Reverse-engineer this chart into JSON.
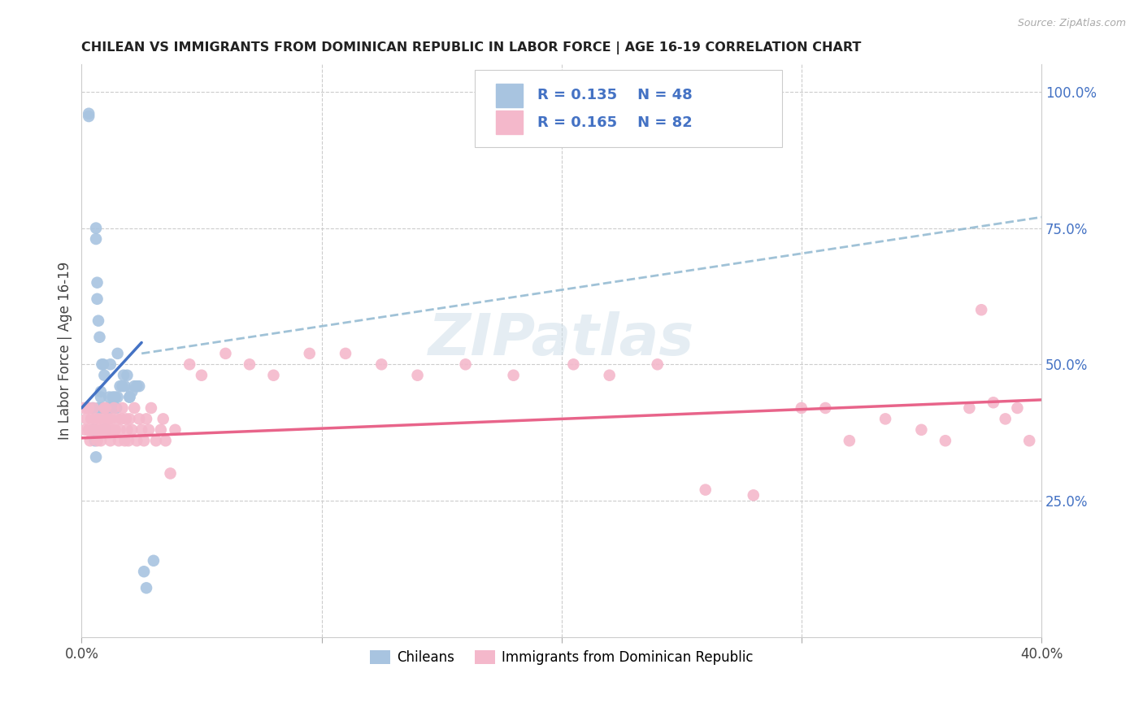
{
  "title": "CHILEAN VS IMMIGRANTS FROM DOMINICAN REPUBLIC IN LABOR FORCE | AGE 16-19 CORRELATION CHART",
  "source": "Source: ZipAtlas.com",
  "ylabel": "In Labor Force | Age 16-19",
  "xlim": [
    0.0,
    0.4
  ],
  "ylim": [
    0.0,
    1.05
  ],
  "xtick_labels": [
    "0.0%",
    "",
    "",
    "",
    "40.0%"
  ],
  "xtick_positions": [
    0.0,
    0.1,
    0.2,
    0.3,
    0.4
  ],
  "ytick_positions_right": [
    0.25,
    0.5,
    0.75,
    1.0
  ],
  "ytick_labels_right": [
    "25.0%",
    "50.0%",
    "75.0%",
    "100.0%"
  ],
  "legend_line1": "R = 0.135    N = 48",
  "legend_line2": "R = 0.165    N = 82",
  "color_chilean": "#a8c4e0",
  "color_dominican": "#f4b8cb",
  "color_chilean_line": "#4472c4",
  "color_dominican_line": "#e8648a",
  "color_dashed_line": "#90b8d0",
  "color_blue_text": "#4472c4",
  "color_title": "#222222",
  "background_color": "#ffffff",
  "watermark": "ZIPatlas",
  "legend_bottom_labels": [
    "Chileans",
    "Immigrants from Dominican Republic"
  ],
  "grid_color": "#cccccc",
  "chilean_x": [
    0.003,
    0.003,
    0.0045,
    0.006,
    0.006,
    0.0065,
    0.0065,
    0.007,
    0.007,
    0.0075,
    0.008,
    0.008,
    0.0085,
    0.0085,
    0.009,
    0.009,
    0.0095,
    0.01,
    0.01,
    0.0105,
    0.011,
    0.0115,
    0.012,
    0.0125,
    0.013,
    0.014,
    0.0145,
    0.015,
    0.016,
    0.017,
    0.018,
    0.019,
    0.02,
    0.021,
    0.022,
    0.024,
    0.005,
    0.0055,
    0.006,
    0.009,
    0.012,
    0.015,
    0.0175,
    0.02,
    0.023,
    0.026,
    0.027,
    0.03
  ],
  "chilean_y": [
    0.955,
    0.96,
    0.42,
    0.75,
    0.73,
    0.65,
    0.62,
    0.58,
    0.42,
    0.55,
    0.45,
    0.44,
    0.5,
    0.42,
    0.5,
    0.42,
    0.48,
    0.42,
    0.38,
    0.42,
    0.42,
    0.44,
    0.42,
    0.42,
    0.44,
    0.44,
    0.42,
    0.44,
    0.46,
    0.46,
    0.46,
    0.48,
    0.44,
    0.45,
    0.46,
    0.46,
    0.38,
    0.36,
    0.33,
    0.38,
    0.5,
    0.52,
    0.48,
    0.44,
    0.46,
    0.12,
    0.09,
    0.14
  ],
  "dominican_x": [
    0.001,
    0.0015,
    0.002,
    0.0025,
    0.003,
    0.003,
    0.0035,
    0.004,
    0.0045,
    0.005,
    0.0055,
    0.006,
    0.0065,
    0.007,
    0.0075,
    0.008,
    0.0085,
    0.009,
    0.0095,
    0.01,
    0.01,
    0.0105,
    0.011,
    0.0115,
    0.012,
    0.0125,
    0.013,
    0.0135,
    0.014,
    0.015,
    0.0155,
    0.016,
    0.0165,
    0.017,
    0.018,
    0.0185,
    0.019,
    0.0195,
    0.02,
    0.021,
    0.022,
    0.023,
    0.024,
    0.025,
    0.026,
    0.027,
    0.028,
    0.029,
    0.031,
    0.033,
    0.034,
    0.035,
    0.037,
    0.039,
    0.045,
    0.05,
    0.06,
    0.07,
    0.08,
    0.095,
    0.11,
    0.125,
    0.14,
    0.16,
    0.18,
    0.205,
    0.22,
    0.24,
    0.26,
    0.28,
    0.3,
    0.31,
    0.32,
    0.335,
    0.35,
    0.36,
    0.37,
    0.375,
    0.38,
    0.385,
    0.39,
    0.395
  ],
  "dominican_y": [
    0.42,
    0.38,
    0.4,
    0.42,
    0.38,
    0.42,
    0.36,
    0.4,
    0.38,
    0.42,
    0.4,
    0.38,
    0.36,
    0.4,
    0.38,
    0.36,
    0.4,
    0.38,
    0.42,
    0.38,
    0.42,
    0.4,
    0.38,
    0.4,
    0.36,
    0.4,
    0.38,
    0.42,
    0.38,
    0.4,
    0.36,
    0.38,
    0.4,
    0.42,
    0.36,
    0.4,
    0.38,
    0.36,
    0.4,
    0.38,
    0.42,
    0.36,
    0.4,
    0.38,
    0.36,
    0.4,
    0.38,
    0.42,
    0.36,
    0.38,
    0.4,
    0.36,
    0.3,
    0.38,
    0.5,
    0.48,
    0.52,
    0.5,
    0.48,
    0.52,
    0.52,
    0.5,
    0.48,
    0.5,
    0.48,
    0.5,
    0.48,
    0.5,
    0.27,
    0.26,
    0.42,
    0.42,
    0.36,
    0.4,
    0.38,
    0.36,
    0.42,
    0.6,
    0.43,
    0.4,
    0.42,
    0.36
  ],
  "chilean_trendline_x": [
    0.0,
    0.025
  ],
  "chilean_trendline_y": [
    0.42,
    0.54
  ],
  "dominican_trendline_x": [
    0.0,
    0.4
  ],
  "dominican_trendline_y": [
    0.365,
    0.435
  ],
  "dashed_trendline_x": [
    0.025,
    0.4
  ],
  "dashed_trendline_y": [
    0.52,
    0.77
  ]
}
